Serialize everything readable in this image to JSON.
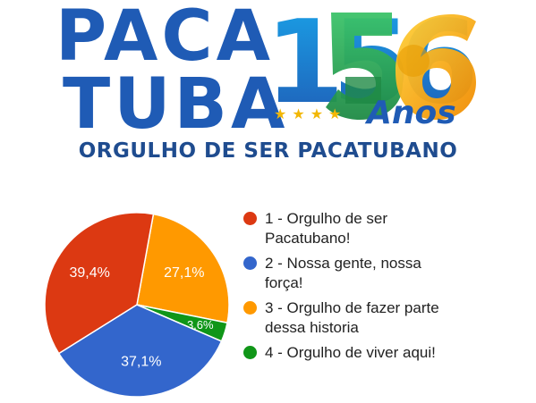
{
  "header": {
    "brand_line1": "PACA",
    "brand_line2": "TUBA",
    "anniversary_number": "156",
    "anniversary_word": "Anos",
    "stars": "★★★★",
    "tagline": "ORGULHO DE SER PACATUBANO"
  },
  "colors": {
    "brand_blue": "#1f5bb5",
    "logo_green": "#2e9e4f",
    "logo_yellow": "#f5b800"
  },
  "chart_data": {
    "type": "pie",
    "title": "",
    "legend_position": "right",
    "slices": [
      {
        "label": "1 - Orgulho de ser Pacatubano!",
        "value": 39.4,
        "display": "39,4%",
        "color": "#dc3912"
      },
      {
        "label": "2 - Nossa gente, nossa força!",
        "value": 37.1,
        "display": "37,1%",
        "color": "#3366cc"
      },
      {
        "label": "3 - Orgulho de fazer parte dessa historia",
        "value": 27.1,
        "display": "27,1%",
        "color": "#ff9900"
      },
      {
        "label": "4 - Orgulho de viver aqui!",
        "value": 3.6,
        "display": "3,6%",
        "color": "#109618"
      }
    ],
    "draw_order": [
      2,
      3,
      1,
      0
    ]
  }
}
